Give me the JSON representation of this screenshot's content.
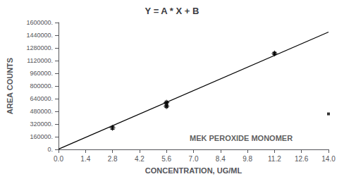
{
  "chart_data": {
    "type": "scatter",
    "title": "Y = A * X + B",
    "xlabel": "CONCENTRATION, UG/ML",
    "ylabel": "AREA COUNTS",
    "xlim": [
      0,
      14.0
    ],
    "ylim": [
      0,
      1600000
    ],
    "xticks": [
      {
        "value": 0,
        "label": "0.0"
      },
      1.4,
      2.8,
      4.2,
      5.6,
      {
        "value": 7,
        "label": "7.0"
      },
      8.4,
      9.8,
      11.2,
      12.6,
      {
        "value": 14,
        "label": "14.0"
      }
    ],
    "yticks": [
      {
        "value": 0,
        "label": "0."
      },
      {
        "value": 160000,
        "label": "160000."
      },
      {
        "value": 320000,
        "label": "320000."
      },
      {
        "value": 480000,
        "label": "480000."
      },
      {
        "value": 640000,
        "label": "640000."
      },
      {
        "value": 800000,
        "label": "800000."
      },
      {
        "value": 960000,
        "label": "960000."
      },
      {
        "value": 1120000,
        "label": "1120000."
      },
      {
        "value": 1280000,
        "label": "1280000."
      },
      {
        "value": 1440000,
        "label": "1440000."
      },
      {
        "value": 1600000,
        "label": "1600000."
      }
    ],
    "grid": false,
    "series": [
      {
        "type": "line",
        "color": "#000000",
        "x": [
          0.0,
          14.0
        ],
        "values": [
          3000,
          1480000
        ]
      },
      {
        "type": "scatter",
        "marker": "plus",
        "color": "#000000",
        "x": [
          2.8,
          5.6,
          5.6,
          11.2
        ],
        "values": [
          272000,
          590000,
          545000,
          1210000
        ],
        "xerr": [
          0.05,
          0.05,
          0.05,
          0.05
        ],
        "yerr": [
          18000,
          14000,
          14000,
          14000
        ]
      },
      {
        "type": "scatter",
        "marker": "square",
        "color": "#000000",
        "x": [
          14.0
        ],
        "values": [
          448000
        ]
      }
    ],
    "annotations": [
      {
        "text": "MEK PEROXIDE MONOMER",
        "x": 6.8,
        "y": 95000
      }
    ]
  }
}
